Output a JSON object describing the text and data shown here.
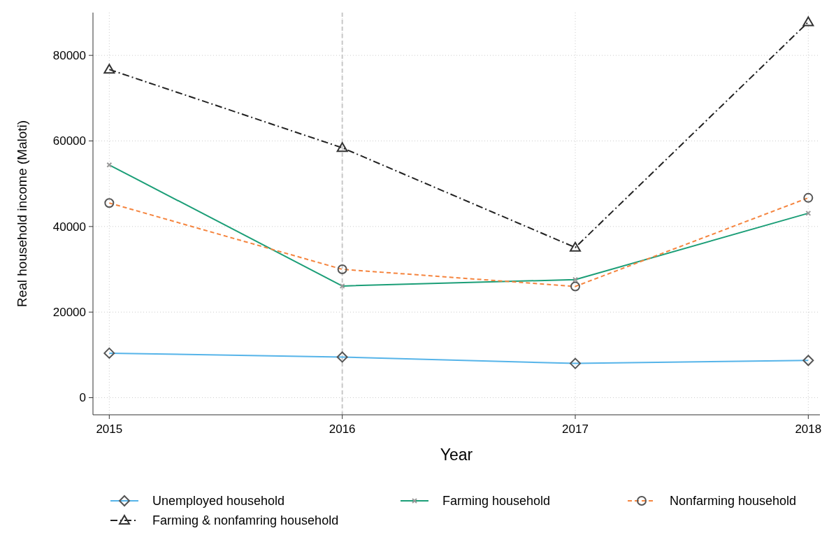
{
  "chart_data": {
    "type": "line",
    "xlabel": "Year",
    "ylabel": "Real household income (Maloti)",
    "x": [
      2015,
      2016,
      2017,
      2018
    ],
    "series": [
      {
        "name": "Unemployed household",
        "color": "#56b4e9",
        "values": [
          10400,
          9500,
          8000,
          8700
        ],
        "marker": "diamond",
        "line_style": "solid"
      },
      {
        "name": "Farming household",
        "color": "#1b9e77",
        "values": [
          54400,
          26100,
          27600,
          43100
        ],
        "marker": "cross",
        "line_style": "solid"
      },
      {
        "name": "Nonfarming household",
        "color": "#f5853f",
        "values": [
          45500,
          30000,
          26000,
          46700
        ],
        "marker": "circle",
        "line_style": "dashed"
      },
      {
        "name": "Farming & nonfamring household",
        "color": "#222222",
        "values": [
          76700,
          58400,
          35100,
          87800
        ],
        "marker": "triangle",
        "line_style": "dashdot"
      }
    ],
    "xlim": [
      2014.93,
      2018.05
    ],
    "ylim": [
      -4000,
      90000
    ],
    "xticks": [
      2015,
      2016,
      2017,
      2018
    ],
    "yticks": [
      0,
      20000,
      40000,
      60000,
      80000
    ],
    "grid": true,
    "legend": "bottom",
    "ref_lines": [
      {
        "axis": "x",
        "value": 2016,
        "color": "#c8c8c8",
        "line_style": "dashed"
      }
    ]
  }
}
